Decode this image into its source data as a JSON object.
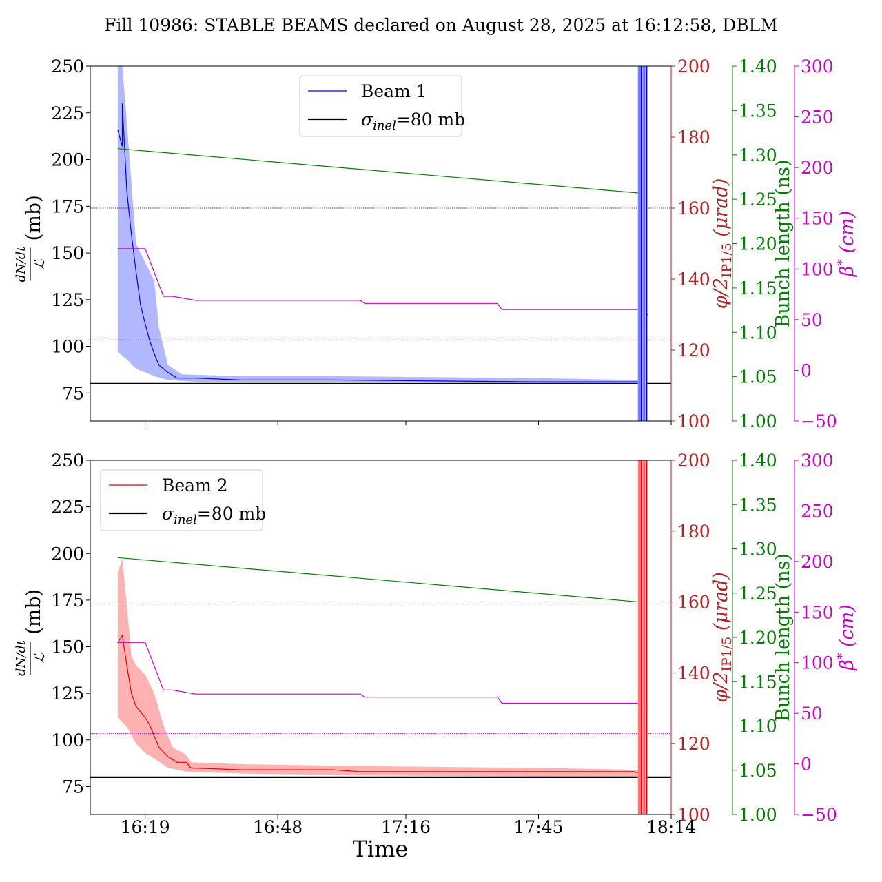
{
  "title": "Fill 10986: STABLE BEAMS declared on August 28, 2025 at 16:12:58, DBLM",
  "xlabel": "Time",
  "colors": {
    "beam1": "#0000ee",
    "beam1_band": "#aab0ff",
    "beam2": "#ee0000",
    "beam2_band": "#ffaaaa",
    "crossing": "#b22222",
    "bunch": "#008000",
    "beta": "#cc00cc",
    "reference": "#000000"
  },
  "axis_labels": {
    "left_num": "dN/dt",
    "left_den": "ℒ",
    "left_unit": "(mb)",
    "crossing_main": "φ/2",
    "crossing_sub": "IP1/5",
    "crossing_unit": "(μrad)",
    "bunch": "Bunch length (ns)",
    "beta_main": "β",
    "beta_sup": "*",
    "beta_unit": "(cm)"
  },
  "chart_data": [
    {
      "type": "line",
      "panel": "top",
      "legend": {
        "placement": "upper center",
        "entries": [
          {
            "label_main": "Beam 1",
            "label_sub": "",
            "label_tail": ""
          },
          {
            "label_main": "σ",
            "label_sub": "inel",
            "label_tail": "=80 mb"
          }
        ]
      },
      "x_ticks": [
        "16:19",
        "16:48",
        "17:16",
        "17:45",
        "18:14"
      ],
      "x_range": [
        "16:07",
        "18:14"
      ],
      "ylim": [
        60,
        250
      ],
      "y_ticks": [
        75,
        100,
        125,
        150,
        175,
        200,
        225,
        250
      ],
      "crossing_ylim": [
        100,
        200
      ],
      "crossing_ticks": [
        100,
        120,
        140,
        160,
        180,
        200
      ],
      "bunch_ylim": [
        1.0,
        1.4
      ],
      "bunch_ticks": [
        "1.00",
        "1.05",
        "1.10",
        "1.15",
        "1.20",
        "1.25",
        "1.30",
        "1.35",
        "1.40"
      ],
      "beta_ylim": [
        -50,
        300
      ],
      "beta_ticks": [
        "−50",
        "0",
        "50",
        "100",
        "150",
        "200",
        "250",
        "300"
      ],
      "reference_value": 80,
      "crossing_value": 160,
      "beta_reference": 30,
      "series": [
        {
          "name": "Beam 1",
          "axis": "left",
          "points": [
            [
              "16:13",
              216
            ],
            [
              "16:14",
              207
            ],
            [
              "16:14",
              230
            ],
            [
              "16:15",
              183
            ],
            [
              "16:16",
              160
            ],
            [
              "16:17",
              140
            ],
            [
              "16:18",
              122
            ],
            [
              "16:19",
              112
            ],
            [
              "16:20",
              103
            ],
            [
              "16:21",
              96
            ],
            [
              "16:22",
              90
            ],
            [
              "16:24",
              86
            ],
            [
              "16:26",
              83
            ],
            [
              "16:30",
              83
            ],
            [
              "16:40",
              82
            ],
            [
              "17:00",
              82
            ],
            [
              "17:20",
              81.5
            ],
            [
              "17:45",
              81
            ],
            [
              "18:00",
              81
            ],
            [
              "18:07",
              81
            ]
          ]
        },
        {
          "name": "Beam 1 band upper",
          "axis": "left",
          "points": [
            [
              "16:13",
              250
            ],
            [
              "16:14",
              250
            ],
            [
              "16:15",
              220
            ],
            [
              "16:17",
              155
            ],
            [
              "16:19",
              145
            ],
            [
              "16:20",
              140
            ],
            [
              "16:21",
              135
            ],
            [
              "16:22",
              110
            ],
            [
              "16:24",
              90
            ],
            [
              "16:27",
              85
            ],
            [
              "16:40",
              84
            ],
            [
              "17:00",
              84
            ],
            [
              "17:45",
              83
            ],
            [
              "18:07",
              82
            ]
          ]
        },
        {
          "name": "Beam 1 band lower",
          "axis": "left",
          "points": [
            [
              "16:13",
              97
            ],
            [
              "16:15",
              93
            ],
            [
              "16:17",
              88
            ],
            [
              "16:19",
              86
            ],
            [
              "16:21",
              84
            ],
            [
              "16:24",
              82
            ],
            [
              "16:30",
              81
            ],
            [
              "17:00",
              81
            ],
            [
              "18:07",
              80
            ]
          ]
        },
        {
          "name": "Bunch length",
          "axis": "bunch",
          "points": [
            [
              "16:13",
              1.307
            ],
            [
              "18:07",
              1.257
            ]
          ]
        },
        {
          "name": "β*",
          "axis": "beta",
          "points": [
            [
              "16:13",
              120
            ],
            [
              "16:19",
              120
            ],
            [
              "16:23",
              73
            ],
            [
              "16:25",
              73
            ],
            [
              "16:30",
              69
            ],
            [
              "17:06",
              69
            ],
            [
              "17:07",
              66
            ],
            [
              "17:36",
              66
            ],
            [
              "17:37",
              60
            ],
            [
              "18:07",
              60
            ],
            [
              "18:07",
              55
            ],
            [
              "18:09",
              55
            ]
          ]
        }
      ]
    },
    {
      "type": "line",
      "panel": "bottom",
      "legend": {
        "placement": "upper left",
        "entries": [
          {
            "label_main": "Beam 2",
            "label_sub": "",
            "label_tail": ""
          },
          {
            "label_main": "σ",
            "label_sub": "inel",
            "label_tail": "=80 mb"
          }
        ]
      },
      "x_ticks": [
        "16:19",
        "16:48",
        "17:16",
        "17:45",
        "18:14"
      ],
      "x_range": [
        "16:07",
        "18:14"
      ],
      "ylim": [
        60,
        250
      ],
      "y_ticks": [
        75,
        100,
        125,
        150,
        175,
        200,
        225,
        250
      ],
      "crossing_ylim": [
        100,
        200
      ],
      "crossing_ticks": [
        100,
        120,
        140,
        160,
        180,
        200
      ],
      "bunch_ylim": [
        1.0,
        1.4
      ],
      "bunch_ticks": [
        "1.00",
        "1.05",
        "1.10",
        "1.15",
        "1.20",
        "1.25",
        "1.30",
        "1.35",
        "1.40"
      ],
      "beta_ylim": [
        -50,
        300
      ],
      "beta_ticks": [
        "−50",
        "0",
        "50",
        "100",
        "150",
        "200",
        "250",
        "300"
      ],
      "reference_value": 80,
      "crossing_value": 160,
      "beta_reference": 30,
      "series": [
        {
          "name": "Beam 2",
          "axis": "left",
          "points": [
            [
              "16:13",
              152
            ],
            [
              "16:14",
              156
            ],
            [
              "16:15",
              140
            ],
            [
              "16:16",
              125
            ],
            [
              "16:17",
              118
            ],
            [
              "16:18",
              115
            ],
            [
              "16:19",
              112
            ],
            [
              "16:20",
              108
            ],
            [
              "16:21",
              102
            ],
            [
              "16:22",
              96
            ],
            [
              "16:24",
              91
            ],
            [
              "16:26",
              88
            ],
            [
              "16:28",
              88
            ],
            [
              "16:29",
              85
            ],
            [
              "16:40",
              84
            ],
            [
              "17:00",
              84
            ],
            [
              "17:06",
              83
            ],
            [
              "17:20",
              83
            ],
            [
              "17:45",
              83
            ],
            [
              "18:06",
              83
            ],
            [
              "18:07",
              82
            ]
          ]
        },
        {
          "name": "Beam 2 band upper",
          "axis": "left",
          "points": [
            [
              "16:13",
              190
            ],
            [
              "16:14",
              197
            ],
            [
              "16:15",
              172
            ],
            [
              "16:16",
              145
            ],
            [
              "16:17",
              140
            ],
            [
              "16:19",
              135
            ],
            [
              "16:21",
              125
            ],
            [
              "16:23",
              108
            ],
            [
              "16:25",
              96
            ],
            [
              "16:28",
              92
            ],
            [
              "16:29",
              88
            ],
            [
              "16:40",
              87
            ],
            [
              "17:06",
              86
            ],
            [
              "17:45",
              85
            ],
            [
              "18:07",
              84
            ]
          ]
        },
        {
          "name": "Beam 2 band lower",
          "axis": "left",
          "points": [
            [
              "16:13",
              112
            ],
            [
              "16:15",
              107
            ],
            [
              "16:17",
              98
            ],
            [
              "16:19",
              93
            ],
            [
              "16:21",
              90
            ],
            [
              "16:24",
              85
            ],
            [
              "16:28",
              83
            ],
            [
              "16:40",
              82
            ],
            [
              "17:06",
              81
            ],
            [
              "18:07",
              80
            ]
          ]
        },
        {
          "name": "Bunch length",
          "axis": "bunch",
          "points": [
            [
              "16:13",
              1.29
            ],
            [
              "18:07",
              1.24
            ]
          ]
        },
        {
          "name": "β*",
          "axis": "beta",
          "points": [
            [
              "16:13",
              120
            ],
            [
              "16:19",
              120
            ],
            [
              "16:23",
              73
            ],
            [
              "16:25",
              73
            ],
            [
              "16:30",
              69
            ],
            [
              "17:06",
              69
            ],
            [
              "17:07",
              66
            ],
            [
              "17:36",
              66
            ],
            [
              "17:37",
              60
            ],
            [
              "18:07",
              60
            ],
            [
              "18:07",
              55
            ],
            [
              "18:09",
              55
            ]
          ]
        }
      ]
    }
  ]
}
